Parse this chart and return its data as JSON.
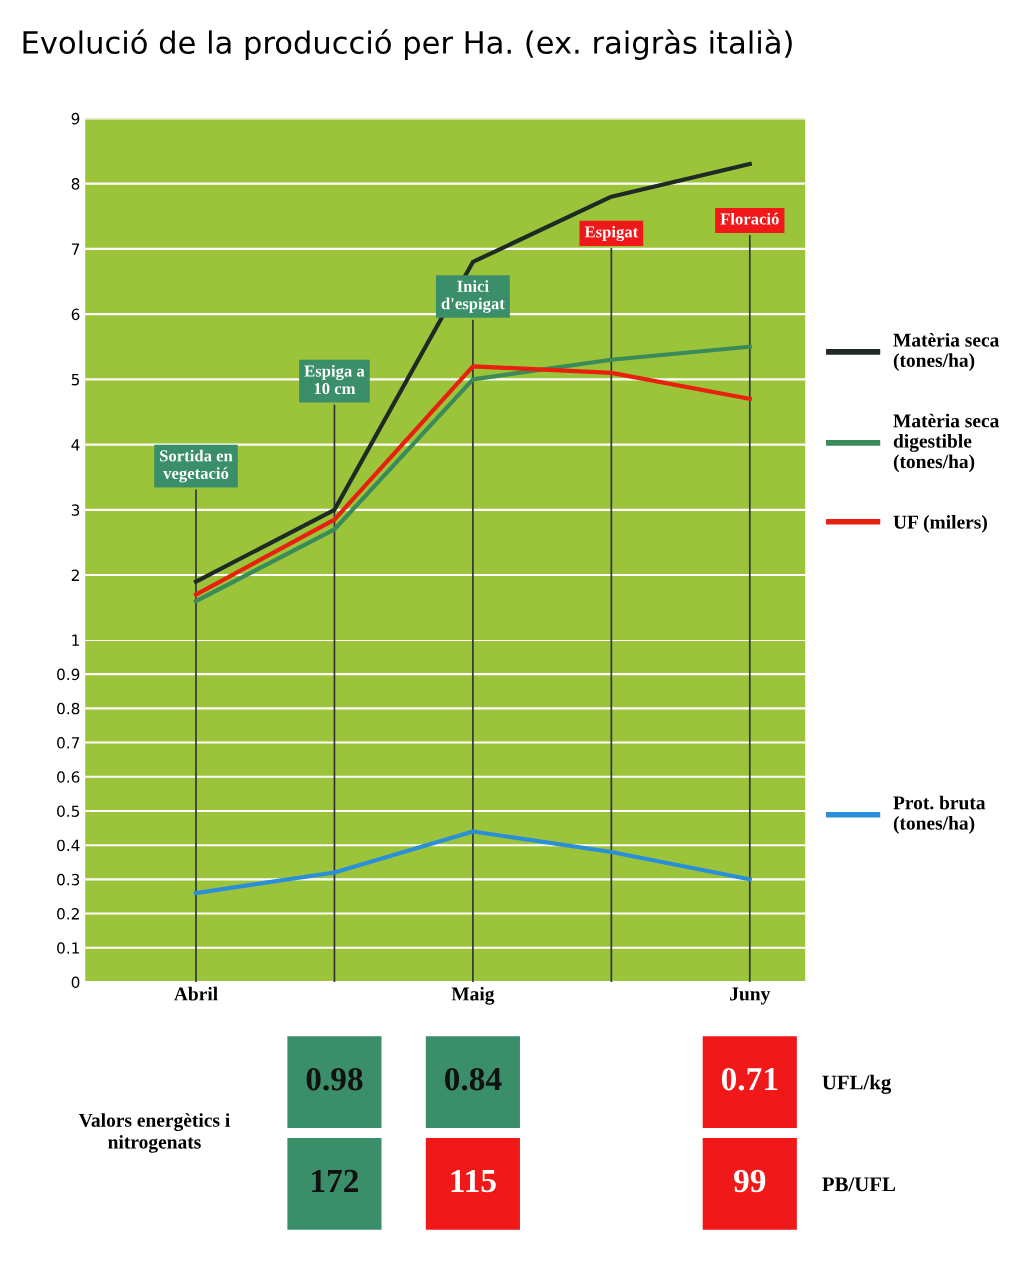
{
  "chart_data": [
    {
      "type": "line",
      "title": "Evolució de la producció per Ha. (ex. raigràs italià)",
      "categories": [
        null,
        null,
        null,
        null,
        null
      ],
      "ylim": [
        1,
        9
      ],
      "yticks": [
        2,
        3,
        4,
        5,
        6,
        7,
        8,
        9
      ],
      "tick_labels": "y",
      "grid": true,
      "legend": "right",
      "marker": "none",
      "line_style": "solid",
      "series": [
        {
          "name": "Matèria seca\n(tones/ha)",
          "color": "#1f2a24",
          "values": [
            1.9,
            3.0,
            6.8,
            7.8,
            8.3
          ]
        },
        {
          "name": "Matèria seca\ndigestible\n(tones/ha)",
          "color": "#3a8a5a",
          "values": [
            1.6,
            2.7,
            5.0,
            5.3,
            5.5
          ]
        },
        {
          "name": "UF (milers)",
          "color": "#e8200f",
          "values": [
            1.7,
            2.85,
            5.2,
            5.1,
            4.7
          ]
        }
      ],
      "annotations": [
        "Sortida en\nvegetació",
        "Espiga a\n10 cm",
        "Inici\nd'espigat",
        "Espigat",
        "Floració"
      ]
    },
    {
      "type": "line",
      "categories": [
        "Abril",
        null,
        "Maig",
        null,
        "Juny"
      ],
      "ylim": [
        0,
        1
      ],
      "yticks": [
        0,
        0.1,
        0.2,
        0.3,
        0.4,
        0.5,
        0.6,
        0.7,
        0.8,
        0.9,
        1
      ],
      "grid": true,
      "legend": "right",
      "marker": "none",
      "line_style": "solid",
      "series": [
        {
          "name": "Prot. bruta\n(tones/ha)",
          "color": "#2a8fd8",
          "values": [
            0.26,
            0.32,
            0.44,
            0.38,
            0.3
          ]
        }
      ]
    },
    {
      "type": "heatmap",
      "title": "Valors energètics i\nnitrogenats",
      "categories": [
        null,
        null,
        null,
        null,
        null
      ],
      "y_categories": [
        "UFL/kg",
        "PB/UFL"
      ],
      "data_labels": true,
      "cells": [
        [
          null,
          0.98,
          0.84,
          null,
          0.71
        ],
        [
          null,
          172,
          115,
          null,
          99
        ]
      ],
      "colors": [
        [
          null,
          "#3a8f6a",
          "#3a8f6a",
          null,
          "#f01818"
        ],
        [
          null,
          "#3a8f6a",
          "#f01818",
          null,
          "#f01818"
        ]
      ]
    }
  ]
}
